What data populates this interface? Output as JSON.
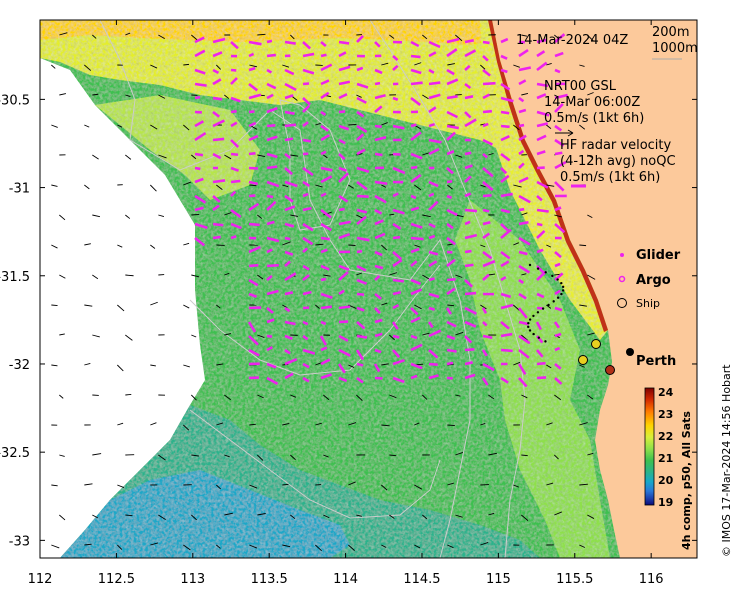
{
  "map": {
    "datetime_label": "14-Mar-2024 04Z",
    "depth_contours": [
      "200m",
      "1000m"
    ],
    "x_ticks": [
      "112",
      "112.5",
      "113",
      "113.5",
      "114",
      "114.5",
      "115",
      "115.5",
      "116"
    ],
    "y_ticks": [
      "-30.5",
      "-31",
      "-31.5",
      "-32",
      "-32.5",
      "-33"
    ],
    "x_range": [
      112,
      116.3
    ],
    "y_range": [
      -33.1,
      -30.05
    ],
    "colors": {
      "land": "#fcc99b",
      "ocean_nodata": "#ffffff",
      "radar_arrows": "#ee22ee",
      "model_arrows": "#000000",
      "contours": "#cccccc"
    }
  },
  "legend": {
    "model": {
      "line1": "NRT00 GSL",
      "line2": "14-Mar 06:00Z",
      "line3": "0.5m/s (1kt 6h)"
    },
    "radar": {
      "line1": "HF radar velocity",
      "line2": "(4-12h avg) noQC",
      "line3": "0.5m/s (1kt 6h)"
    },
    "symbols": {
      "glider": "Glider",
      "argo": "Argo",
      "ship": "Ship"
    }
  },
  "places": {
    "perth": "Perth"
  },
  "colorbar": {
    "ticks": [
      "24",
      "23",
      "22",
      "21",
      "20",
      "19"
    ],
    "title": "4h comp, p50, All Sats",
    "range": [
      19,
      24
    ],
    "colors": [
      "#7f0000",
      "#d42a00",
      "#ff7a00",
      "#ffd400",
      "#d8ef3a",
      "#8ee04a",
      "#3cc050",
      "#29b38c",
      "#16a8c8",
      "#2878d8",
      "#1a3aa8",
      "#0a0a78"
    ]
  },
  "credit": "© IMOS 17-Mar-2024 14:56 Hobart"
}
